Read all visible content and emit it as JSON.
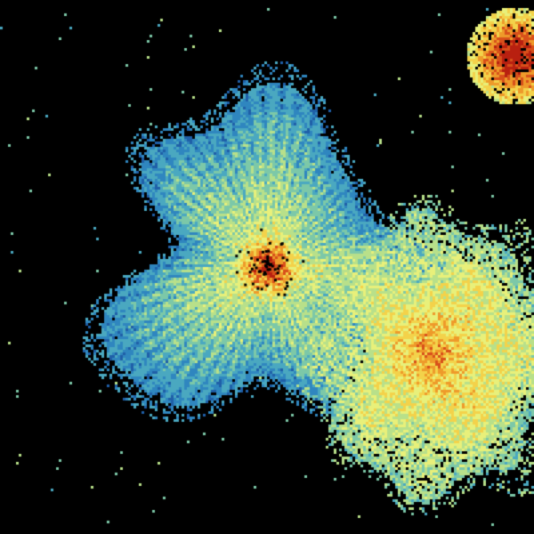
{
  "image": {
    "kind": "radar reflectivity sweep",
    "background": "#000000",
    "colormap": [
      "#1f5fa8",
      "#2f86bf",
      "#4aa8c0",
      "#7cc8a8",
      "#b8e08a",
      "#e8f07a",
      "#f3d24a",
      "#ee9a2a",
      "#d8501a",
      "#b82010"
    ]
  }
}
